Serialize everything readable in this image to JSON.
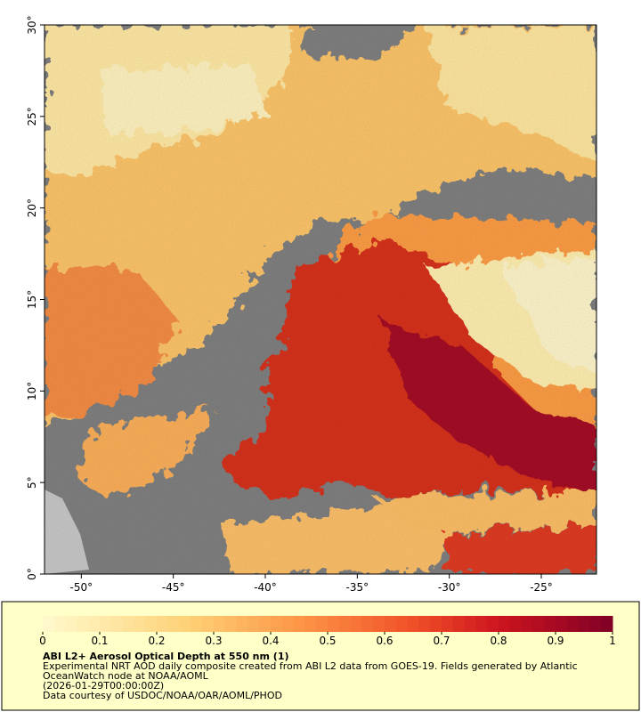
{
  "map": {
    "xlim": [
      -52,
      -22
    ],
    "ylim": [
      0,
      30
    ],
    "xticks": [
      {
        "value": -50,
        "label": "-50°"
      },
      {
        "value": -45,
        "label": "-45°"
      },
      {
        "value": -40,
        "label": "-40°"
      },
      {
        "value": -35,
        "label": "-35°"
      },
      {
        "value": -30,
        "label": "-30°"
      },
      {
        "value": -25,
        "label": "-25°"
      }
    ],
    "yticks": [
      {
        "value": 0,
        "label": "0°"
      },
      {
        "value": 5,
        "label": "5°"
      },
      {
        "value": 10,
        "label": "10°"
      },
      {
        "value": 15,
        "label": "15°"
      },
      {
        "value": 20,
        "label": "20°"
      },
      {
        "value": 25,
        "label": "25°"
      },
      {
        "value": 30,
        "label": "30°"
      }
    ]
  },
  "colorbar": {
    "lim": [
      0,
      1
    ],
    "ticks": [
      0,
      0.1,
      0.2,
      0.3,
      0.4,
      0.5,
      0.6,
      0.7,
      0.8,
      0.9,
      1
    ]
  },
  "caption": {
    "title": "ABI L2+ Aerosol Optical Depth at 550 nm (1)",
    "lines": [
      "Experimental NRT AOD daily composite created from ABI L2 data from GOES-19. Fields generated by Atlantic",
      "OceanWatch node at NOAA/AOML",
      "(2026-01-29T00:00:00Z)",
      "Data courtesy of USDOC/NOAA/OAR/AOML/PHOD"
    ]
  }
}
